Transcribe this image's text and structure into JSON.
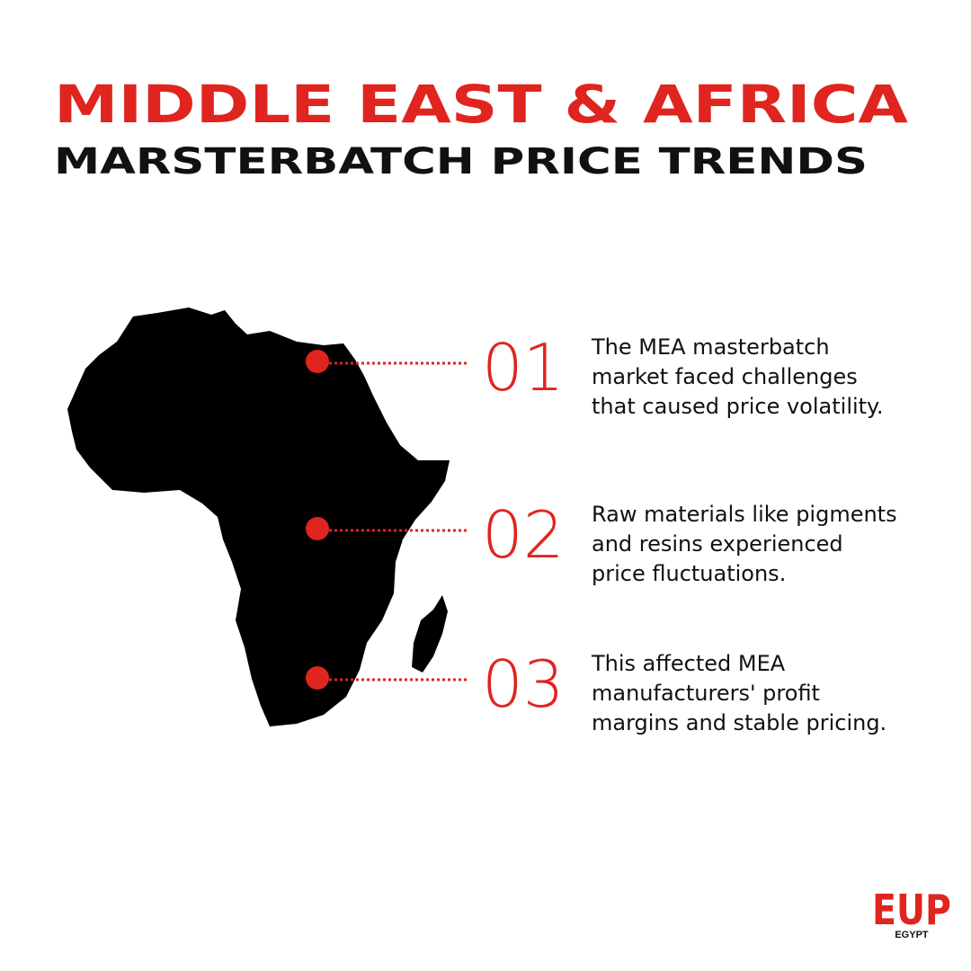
{
  "header": {
    "title": "MIDDLE EAST & AFRICA",
    "subtitle": "MARSTERBATCH PRICE TRENDS"
  },
  "items": [
    {
      "number": "01",
      "lines": [
        "The MEA masterbatch",
        "market faced challenges",
        "that caused price volatility."
      ]
    },
    {
      "number": "02",
      "lines": [
        "Raw materials like pigments",
        "and resins experienced",
        "price fluctuations."
      ]
    },
    {
      "number": "03",
      "lines": [
        "This affected MEA",
        "manufacturers' profit",
        "margins and stable pricing."
      ]
    }
  ],
  "logo": {
    "mark": "EUP",
    "sub": "EGYPT"
  }
}
